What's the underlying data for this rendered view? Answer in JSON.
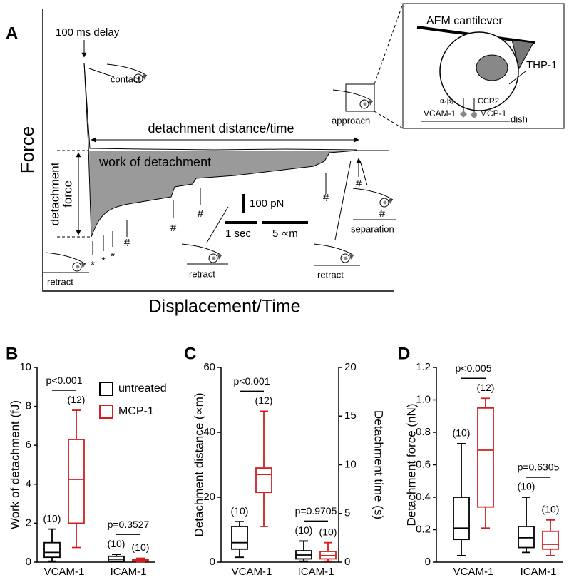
{
  "panel_a": {
    "label": "A",
    "y_label": "Force",
    "x_label": "Displacement/Time",
    "delay": "100 ms delay",
    "contact": "contact",
    "distance": "detachment distance/time",
    "approach": "approach",
    "work": "work of detachment",
    "force_label": [
      "detachment",
      "force"
    ],
    "scale_force": "100 pN",
    "scale_time": "1 sec",
    "scale_distance": "5 ∝m",
    "separation": "separation",
    "retract": [
      "retract",
      "retract",
      "retract"
    ],
    "stars": [
      "*",
      "*",
      "*"
    ],
    "hashes": [
      "#",
      "#",
      "#",
      "#",
      "#",
      "#"
    ],
    "inset": {
      "cantilever": "AFM cantilever",
      "cell": "THP-1",
      "integrin": "α₄β₁",
      "receptor": "CCR2",
      "vcam": "VCAM-1",
      "mcp": "MCP-1",
      "dish": "dish"
    }
  },
  "chart_data": [
    {
      "type": "box",
      "panel": "B",
      "y_label": "Work of detachment (fJ)",
      "categories": [
        "VCAM-1",
        "ICAM-1"
      ],
      "ylim": [
        0,
        10
      ],
      "yticks": [
        0,
        2,
        4,
        6,
        8,
        10
      ],
      "series": [
        {
          "name": "untreated",
          "color": "#000000",
          "n_labels": [
            "(10)",
            "(10)"
          ],
          "values": [
            {
              "low": 0.05,
              "q1": 0.25,
              "median": 0.5,
              "q3": 1.0,
              "high": 1.7
            },
            {
              "low": 0.02,
              "q1": 0.05,
              "median": 0.15,
              "q3": 0.3,
              "high": 0.4
            }
          ]
        },
        {
          "name": "MCP-1",
          "color": "#d02020",
          "n_labels": [
            "(12)",
            "(10)"
          ],
          "values": [
            {
              "low": 0.75,
              "q1": 2.0,
              "median": 4.25,
              "q3": 6.3,
              "high": 7.8
            },
            {
              "low": 0.02,
              "q1": 0.05,
              "median": 0.08,
              "q3": 0.12,
              "high": 0.2
            }
          ]
        }
      ],
      "p_values": [
        "p<0.001",
        "p=0.3527"
      ]
    },
    {
      "type": "box",
      "panel": "C",
      "y_label": "Detachment distance (∝m)",
      "y2_label": "Detachment time (s)",
      "categories": [
        "VCAM-1",
        "ICAM-1"
      ],
      "ylim": [
        0,
        60
      ],
      "yticks": [
        0,
        20,
        40,
        60
      ],
      "y2lim": [
        0,
        20
      ],
      "y2ticks": [
        0,
        5,
        10,
        15,
        20
      ],
      "series": [
        {
          "color": "#000000",
          "n_labels": [
            "(10)",
            "(10)"
          ],
          "values": [
            {
              "low": 1.5,
              "q1": 4,
              "median": 6,
              "q3": 11,
              "high": 12.5
            },
            {
              "low": 0.3,
              "q1": 1,
              "median": 2.2,
              "q3": 3.5,
              "high": 6.5
            }
          ]
        },
        {
          "color": "#d02020",
          "n_labels": [
            "(12)",
            "(10)"
          ],
          "values": [
            {
              "low": 11,
              "q1": 21.5,
              "median": 27,
              "q3": 29,
              "high": 46.5
            },
            {
              "low": 0.3,
              "q1": 1,
              "median": 2,
              "q3": 3.3,
              "high": 6
            }
          ]
        }
      ],
      "p_values": [
        "p<0.001",
        "p=0.9705"
      ]
    },
    {
      "type": "box",
      "panel": "D",
      "y_label": "Detachment force (nN)",
      "categories": [
        "VCAM-1",
        "ICAM-1"
      ],
      "ylim": [
        0,
        1.2
      ],
      "yticks": [
        0,
        0.2,
        0.4,
        0.6,
        0.8,
        {
          "value": 1,
          "label": "1.0"
        },
        1.2
      ],
      "series": [
        {
          "color": "#000000",
          "n_labels": [
            "(10)",
            "(10)"
          ],
          "values": [
            {
              "low": 0.04,
              "q1": 0.14,
              "median": 0.21,
              "q3": 0.4,
              "high": 0.73
            },
            {
              "low": 0.06,
              "q1": 0.09,
              "median": 0.15,
              "q3": 0.22,
              "high": 0.4
            }
          ]
        },
        {
          "color": "#d02020",
          "n_labels": [
            "(12)",
            "(10)"
          ],
          "values": [
            {
              "low": 0.21,
              "q1": 0.34,
              "median": 0.69,
              "q3": 0.95,
              "high": 1.01
            },
            {
              "low": 0.04,
              "q1": 0.08,
              "median": 0.11,
              "q3": 0.19,
              "high": 0.26
            }
          ]
        }
      ],
      "p_values": [
        "p<0.005",
        "p=0.6305"
      ]
    }
  ]
}
